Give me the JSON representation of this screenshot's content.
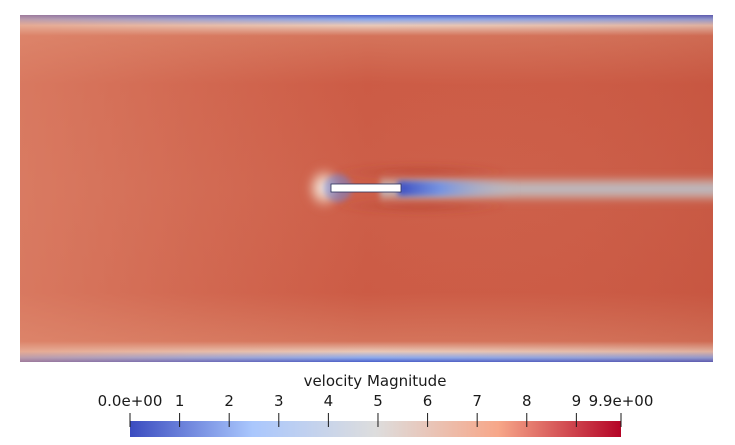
{
  "scalar_bar": {
    "title": "velocity Magnitude",
    "min": 0.0,
    "max": 9.9,
    "ticks": [
      {
        "value": 0.0,
        "label": "0.0e+00"
      },
      {
        "value": 1,
        "label": "1"
      },
      {
        "value": 2,
        "label": "2"
      },
      {
        "value": 3,
        "label": "3"
      },
      {
        "value": 4,
        "label": "4"
      },
      {
        "value": 5,
        "label": "5"
      },
      {
        "value": 6,
        "label": "6"
      },
      {
        "value": 7,
        "label": "7"
      },
      {
        "value": 8,
        "label": "8"
      },
      {
        "value": 9,
        "label": "9"
      },
      {
        "value": 9.9,
        "label": "9.9e+00"
      }
    ],
    "colormap": [
      "#3b4cc0",
      "#aac7fd",
      "#dddddd",
      "#f7a789",
      "#b40426"
    ]
  },
  "field": {
    "free_stream_color": "#cf5f48",
    "wake_color": "#b9bdc6",
    "stagnation_color": "#eadfda",
    "wall_color": "#4a5fc9",
    "plate_color": "#ffffff"
  }
}
